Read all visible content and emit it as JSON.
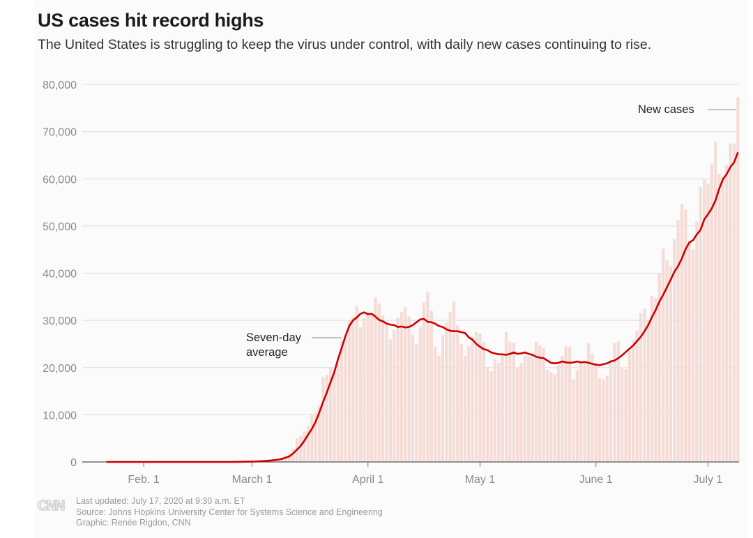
{
  "header": {
    "title": "US cases hit record highs",
    "subtitle": "The United States is struggling to keep the virus under control, with daily new cases continuing to rise."
  },
  "footer": {
    "logo": "CNN",
    "updated": "Last updated: July 17, 2020 at 9:30 a.m. ET",
    "source": "Source: Johns Hopkins University Center for Systems Science and Engineering",
    "credit": "Graphic: Renée Rigdon, CNN"
  },
  "colors": {
    "bar": "#f6dcd6",
    "line": "#cc0000",
    "grid": "#e2e2e2",
    "axis": "#555555"
  },
  "chart_data": {
    "type": "bar",
    "title": "US cases hit record highs",
    "xlabel": "",
    "ylabel": "",
    "ylim": [
      0,
      80000
    ],
    "yticks": [
      0,
      10000,
      20000,
      30000,
      40000,
      50000,
      60000,
      70000,
      80000
    ],
    "ytick_labels": [
      "0",
      "10,000",
      "20,000",
      "30,000",
      "40,000",
      "50,000",
      "60,000",
      "70,000",
      "80,000"
    ],
    "xticks": [
      {
        "label": "Feb. 1",
        "day": 10
      },
      {
        "label": "March 1",
        "day": 39
      },
      {
        "label": "April 1",
        "day": 70
      },
      {
        "label": "May 1",
        "day": 100
      },
      {
        "label": "June 1",
        "day": 131
      },
      {
        "label": "July 1",
        "day": 161
      }
    ],
    "start_date": "Jan. 22",
    "grid": true,
    "annotations": [
      {
        "text": [
          "Seven-day",
          "average"
        ],
        "target": "line"
      },
      {
        "text": [
          "New cases"
        ],
        "target": "bars"
      }
    ],
    "series": [
      {
        "name": "New cases",
        "kind": "bar",
        "values": [
          0,
          0,
          1,
          0,
          3,
          0,
          0,
          1,
          0,
          0,
          2,
          1,
          0,
          0,
          3,
          0,
          0,
          0,
          0,
          0,
          0,
          1,
          0,
          0,
          0,
          0,
          0,
          0,
          1,
          0,
          2,
          3,
          4,
          5,
          10,
          15,
          30,
          40,
          60,
          70,
          120,
          150,
          250,
          300,
          400,
          500,
          700,
          900,
          1300,
          1700,
          2800,
          5000,
          5500,
          6500,
          7600,
          10000,
          10500,
          12000,
          18000,
          18500,
          20000,
          19500,
          21500,
          25800,
          26000,
          30000,
          30800,
          33000,
          28500,
          30500,
          31800,
          31200,
          34800,
          33500,
          31000,
          29800,
          26000,
          28000,
          30500,
          31800,
          32800,
          30800,
          27000,
          25000,
          28500,
          33800,
          36000,
          32000,
          24500,
          22500,
          27000,
          29500,
          31800,
          34000,
          29000,
          25000,
          22500,
          24500,
          26500,
          27500,
          27200,
          25400,
          20000,
          19200,
          21800,
          21000,
          23000,
          27500,
          25500,
          25300,
          19900,
          21000,
          22500,
          22500,
          23000,
          25500,
          24800,
          24200,
          19500,
          19000,
          18600,
          20500,
          22500,
          24500,
          24400,
          17500,
          19500,
          21000,
          21000,
          25200,
          23000,
          21000,
          17800,
          17500,
          18200,
          21600,
          25200,
          25600,
          19800,
          19700,
          23500,
          25800,
          27800,
          31500,
          32500,
          30000,
          35200,
          34800,
          40000,
          45200,
          42700,
          41500,
          47200,
          51200,
          54600,
          53500,
          46800,
          45100,
          51000,
          58300,
          59800,
          59000,
          63200,
          67900,
          61000,
          60300,
          63000,
          67500,
          67400,
          77300
        ]
      },
      {
        "name": "Seven-day average",
        "kind": "line",
        "values": [
          0,
          0,
          0,
          0,
          0,
          0,
          0,
          0,
          0,
          0,
          0,
          0,
          0,
          0,
          0,
          0,
          0,
          0,
          0,
          0,
          0,
          0,
          0,
          0,
          0,
          0,
          0,
          0,
          0,
          0,
          0,
          0,
          0,
          0,
          10,
          20,
          30,
          40,
          60,
          80,
          100,
          140,
          190,
          250,
          300,
          400,
          500,
          650,
          900,
          1200,
          1800,
          2600,
          3400,
          4500,
          5800,
          7000,
          8500,
          10500,
          12700,
          14700,
          16900,
          19000,
          21800,
          24200,
          26700,
          28800,
          30000,
          30600,
          31400,
          31700,
          31300,
          31400,
          30800,
          30100,
          29800,
          29300,
          29100,
          29000,
          28600,
          28700,
          28500,
          28600,
          29000,
          29600,
          30200,
          30300,
          29700,
          29600,
          29300,
          28800,
          28600,
          28100,
          27800,
          27700,
          27700,
          27500,
          27300,
          26400,
          25900,
          25000,
          24400,
          23900,
          23700,
          23200,
          23000,
          22800,
          22800,
          22700,
          22900,
          23200,
          22900,
          23000,
          23200,
          22900,
          22700,
          22300,
          22100,
          22000,
          21500,
          21000,
          20900,
          21000,
          21300,
          21100,
          21000,
          21100,
          21300,
          21100,
          21200,
          21000,
          20800,
          20600,
          20500,
          20700,
          20900,
          21300,
          21500,
          22000,
          22600,
          23300,
          24000,
          24700,
          25600,
          26500,
          27700,
          29000,
          30700,
          32200,
          34000,
          35400,
          37000,
          38600,
          40300,
          41500,
          43100,
          45100,
          46500,
          47000,
          48200,
          49200,
          51400,
          52500,
          53700,
          55400,
          57900,
          59900,
          61000,
          62500,
          63500,
          65600
        ]
      }
    ]
  }
}
